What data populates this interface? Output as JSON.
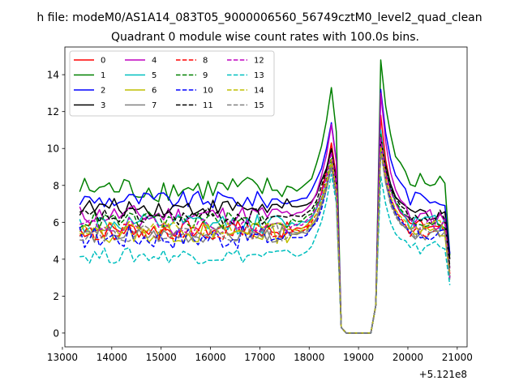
{
  "chart_data": {
    "type": "line",
    "suptitle": "h file: modeM0/AS1A14_083T05_9000006560_56749cztM0_level2_quad_clean",
    "title": "Quadrant 0 module wise count rates with 100.0s bins.",
    "xlabel": "",
    "ylabel": "",
    "x_offset_label": "+5.121e8",
    "xlim": [
      13050,
      21200
    ],
    "ylim": [
      -0.75,
      15.5
    ],
    "xticks": [
      13000,
      14000,
      15000,
      16000,
      17000,
      18000,
      19000,
      20000,
      21000
    ],
    "yticks": [
      0,
      2,
      4,
      6,
      8,
      10,
      12,
      14
    ],
    "grid": false,
    "legend_position": "top-left",
    "legend_columns": 4,
    "x_start": 13350,
    "x_step": 100,
    "n_points": 76,
    "gap": {
      "start": 18650,
      "end": 19250,
      "value": 0,
      "start_index": 13,
      "end_index": 19
    },
    "series": [
      {
        "name": "0",
        "color": "#ff0000",
        "dash": "solid",
        "pre": 5.6,
        "noise": 0.22,
        "peak1": 10.3,
        "peak2": 11.8,
        "after": 5.8,
        "last": 3.2
      },
      {
        "name": "1",
        "color": "#008000",
        "dash": "solid",
        "pre": 7.8,
        "noise": 0.32,
        "peak1": 13.3,
        "peak2": 14.8,
        "after": 8.2,
        "last": 4.2
      },
      {
        "name": "2",
        "color": "#0000ff",
        "dash": "solid",
        "pre": 7.2,
        "noise": 0.22,
        "peak1": 11.4,
        "peak2": 13.2,
        "after": 7.3,
        "last": 4.3
      },
      {
        "name": "3",
        "color": "#000000",
        "dash": "solid",
        "pre": 6.8,
        "noise": 0.22,
        "peak1": 10.0,
        "peak2": 10.6,
        "after": 6.5,
        "last": 4.0
      },
      {
        "name": "4",
        "color": "#bf00bf",
        "dash": "solid",
        "pre": 6.4,
        "noise": 0.25,
        "peak1": 11.3,
        "peak2": 13.0,
        "after": 6.3,
        "last": 3.5
      },
      {
        "name": "5",
        "color": "#00bfbf",
        "dash": "solid",
        "pre": 5.9,
        "noise": 0.25,
        "peak1": 9.2,
        "peak2": 11.0,
        "after": 6.0,
        "last": 3.0
      },
      {
        "name": "6",
        "color": "#bfbf00",
        "dash": "solid",
        "pre": 5.4,
        "noise": 0.25,
        "peak1": 9.1,
        "peak2": 10.1,
        "after": 5.4,
        "last": 3.0
      },
      {
        "name": "7",
        "color": "#808080",
        "dash": "solid",
        "pre": 5.3,
        "noise": 0.2,
        "peak1": 9.0,
        "peak2": 10.0,
        "after": 5.4,
        "last": 2.9
      },
      {
        "name": "8",
        "color": "#ff0000",
        "dash": "dashed",
        "pre": 5.5,
        "noise": 0.2,
        "peak1": 9.4,
        "peak2": 10.3,
        "after": 5.5,
        "last": 3.0
      },
      {
        "name": "9",
        "color": "#008000",
        "dash": "dashed",
        "pre": 6.1,
        "noise": 0.22,
        "peak1": 9.5,
        "peak2": 10.8,
        "after": 6.0,
        "last": 3.4
      },
      {
        "name": "10",
        "color": "#0000ff",
        "dash": "dashed",
        "pre": 5.2,
        "noise": 0.3,
        "peak1": 9.0,
        "peak2": 10.0,
        "after": 5.4,
        "last": 3.0
      },
      {
        "name": "11",
        "color": "#000000",
        "dash": "dashed",
        "pre": 6.3,
        "noise": 0.22,
        "peak1": 10.0,
        "peak2": 10.6,
        "after": 6.3,
        "last": 3.6
      },
      {
        "name": "12",
        "color": "#bf00bf",
        "dash": "dashed",
        "pre": 5.8,
        "noise": 0.22,
        "peak1": 9.8,
        "peak2": 10.6,
        "after": 5.9,
        "last": 3.0
      },
      {
        "name": "13",
        "color": "#00bfbf",
        "dash": "dashed",
        "pre": 4.2,
        "noise": 0.2,
        "peak1": 8.6,
        "peak2": 8.5,
        "after": 4.6,
        "last": 2.6
      },
      {
        "name": "14",
        "color": "#bfbf00",
        "dash": "dashed",
        "pre": 5.6,
        "noise": 0.2,
        "peak1": 9.4,
        "peak2": 10.1,
        "after": 5.8,
        "last": 3.1
      },
      {
        "name": "15",
        "color": "#808080",
        "dash": "dashed",
        "pre": 5.4,
        "noise": 0.2,
        "peak1": 9.0,
        "peak2": 9.8,
        "after": 5.4,
        "last": 3.0
      }
    ]
  }
}
